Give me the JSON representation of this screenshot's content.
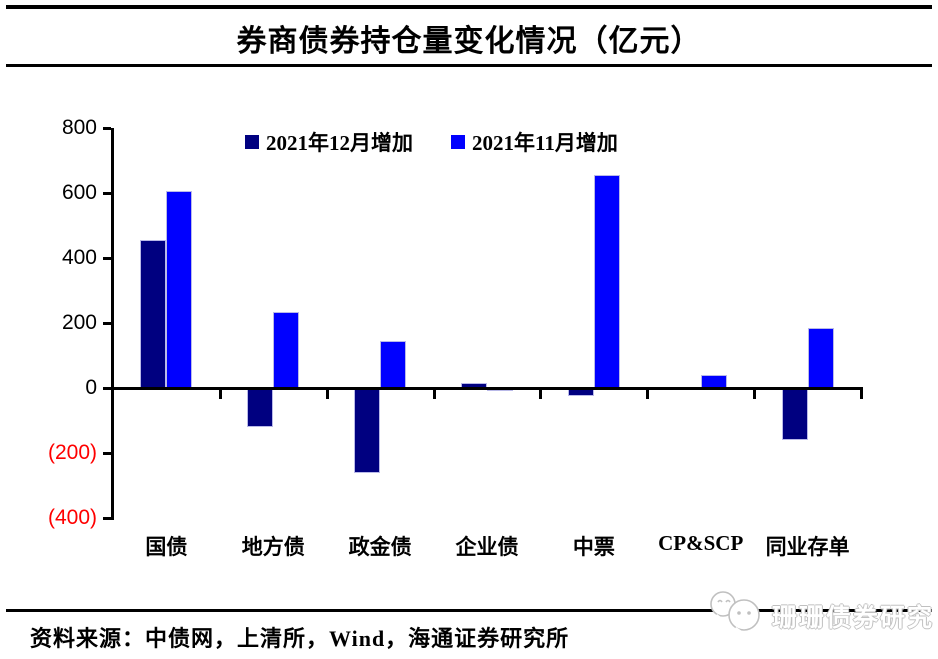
{
  "title": "券商债券持仓量变化情况（亿元）",
  "source_line": "资料来源：中债网，上清所，Wind，海通证券研究所",
  "watermark": {
    "text": "珊珊债券研究"
  },
  "colors": {
    "series_dec": "#000080",
    "series_nov": "#0000ff",
    "negative_axis_label": "#ff0000",
    "bar_border": "#b9b9e8",
    "axis": "#000000",
    "watermark_gray": "#c0c0c0"
  },
  "chart_data": {
    "type": "bar",
    "title": "券商债券持仓量变化情况（亿元）",
    "categories": [
      "国债",
      "地方债",
      "政金债",
      "企业债",
      "中票",
      "CP&SCP",
      "同业存单"
    ],
    "series": [
      {
        "name": "2021年12月增加",
        "color": "#000080",
        "values": [
          455,
          -120,
          -260,
          15,
          -25,
          -5,
          -160
        ]
      },
      {
        "name": "2021年11月增加",
        "color": "#0000ff",
        "values": [
          605,
          235,
          145,
          -10,
          655,
          40,
          185
        ]
      }
    ],
    "ylabel": "",
    "xlabel": "",
    "ylim": [
      -400,
      800
    ],
    "ytick_interval": 200,
    "yticks": [
      800,
      600,
      400,
      200,
      0,
      -200,
      -400
    ],
    "ytick_labels": [
      "800",
      "600",
      "400",
      "200",
      "0",
      "(200)",
      "(400)"
    ],
    "negative_tick_style": "red-parentheses",
    "legend_position": "top-center",
    "grid": false,
    "unit": "亿元"
  }
}
